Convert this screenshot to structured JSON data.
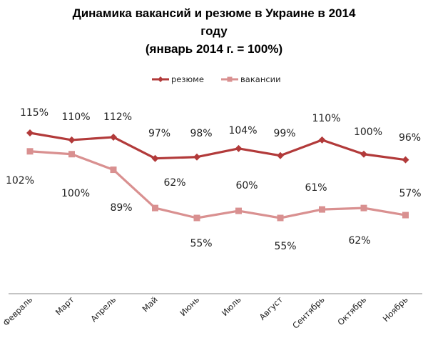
{
  "chart_data": {
    "type": "line",
    "title_lines": [
      "Динамика вакансий и резюме в Украине в 2014",
      "году",
      "(январь 2014 г. = 100%)"
    ],
    "categories": [
      "Февраль",
      "Март",
      "Апрель",
      "Май",
      "Июнь",
      "Июль",
      "Август",
      "Сентябрь",
      "Октябрь",
      "Ноябрь"
    ],
    "series": [
      {
        "name": "резюме",
        "values": [
          115,
          110,
          112,
          97,
          98,
          104,
          99,
          110,
          100,
          96
        ],
        "labels": [
          "115%",
          "110%",
          "112%",
          "97%",
          "98%",
          "104%",
          "99%",
          "110%",
          "100%",
          "96%"
        ],
        "color": "#b23a3a",
        "marker": "diamond"
      },
      {
        "name": "вакансии",
        "values": [
          102,
          100,
          89,
          62,
          55,
          60,
          55,
          61,
          62,
          57
        ],
        "labels": [
          "102%",
          "100%",
          "89%",
          "62%",
          "55%",
          "60%",
          "55%",
          "61%",
          "62%",
          "57%"
        ],
        "color": "#d99090",
        "marker": "square"
      }
    ],
    "legend_position": "top",
    "grid": false
  }
}
